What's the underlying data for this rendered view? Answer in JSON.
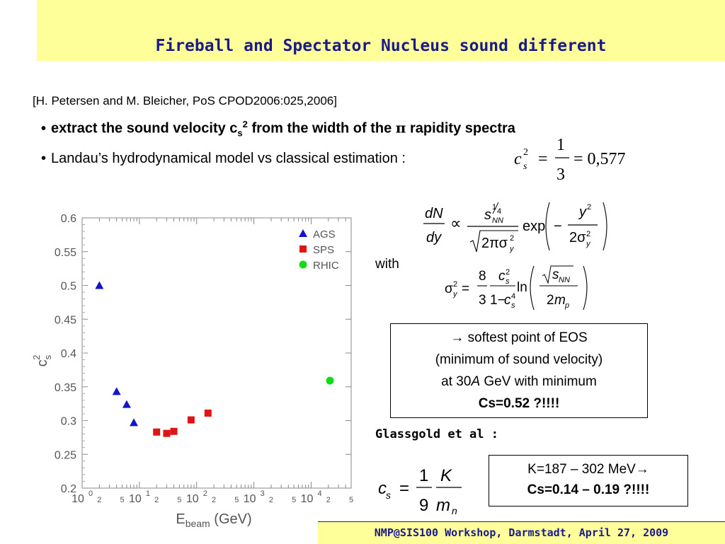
{
  "slide": {
    "title": "Fireball and Spectator Nucleus sound different",
    "reference": "[H. Petersen and M. Bleicher, PoS CPOD2006:025,2006]",
    "bullet1": {
      "pre": "extract the sound velocity c",
      "sub": "s",
      "sup": "2",
      "post": " from the width of the ",
      "pi": "π",
      "tail": " rapidity spectra"
    },
    "bullet2": "Landau’s hydrodynamical model vs classical estimation :",
    "bullet2_eq": {
      "c": "c",
      "sub": "s",
      "sup": "2",
      "num": "1",
      "den": "3",
      "value": "= 0,577"
    },
    "with_label": "with",
    "softest_box": {
      "line1": "→ softest point of EOS",
      "line2": "(minimum of sound velocity)",
      "line3_pre": "at 30",
      "line3_a": "A",
      "line3_post": " GeV with minimum",
      "line4": "Cs=0.52 ?!!!!"
    },
    "glassgold_label": "Glassgold et al :",
    "k_box": {
      "line1": "K=187 – 302 MeV→",
      "line2": "Cs=0.14 – 0.19 ?!!!!"
    },
    "footer": "NMP@SIS100 Workshop, Darmstadt, April 27, 2009"
  },
  "chart_data": {
    "type": "scatter",
    "x_scale": "log",
    "xlim": [
      1,
      50000
    ],
    "ylim": [
      0.2,
      0.6
    ],
    "xlabel": "E",
    "xlabel_sub": "beam",
    "xlabel_unit": " (GeV)",
    "ylabel": "c",
    "ylabel_sub": "s",
    "ylabel_sup": "2",
    "y_ticks": [
      "0.2",
      "0.25",
      "0.3",
      "0.35",
      "0.4",
      "0.45",
      "0.5",
      "0.55",
      "0.6"
    ],
    "x_major_ticks": [
      {
        "base": "10",
        "exp": "0"
      },
      {
        "base": "10",
        "exp": "1"
      },
      {
        "base": "10",
        "exp": "2"
      },
      {
        "base": "10",
        "exp": "3"
      },
      {
        "base": "10",
        "exp": "4"
      }
    ],
    "x_minor_labels": [
      "2",
      "5"
    ],
    "legend_position": "top-right",
    "series": [
      {
        "name": "AGS",
        "color": "#1414c8",
        "marker": "triangle",
        "points": [
          [
            2,
            0.5
          ],
          [
            4,
            0.343
          ],
          [
            6,
            0.324
          ],
          [
            8,
            0.297
          ]
        ]
      },
      {
        "name": "SPS",
        "color": "#e01414",
        "marker": "square",
        "points": [
          [
            20,
            0.283
          ],
          [
            30,
            0.281
          ],
          [
            40,
            0.284
          ],
          [
            80,
            0.301
          ],
          [
            158,
            0.311
          ]
        ]
      },
      {
        "name": "RHIC",
        "color": "#14dc14",
        "marker": "circle",
        "points": [
          [
            21300,
            0.359
          ]
        ]
      }
    ]
  }
}
